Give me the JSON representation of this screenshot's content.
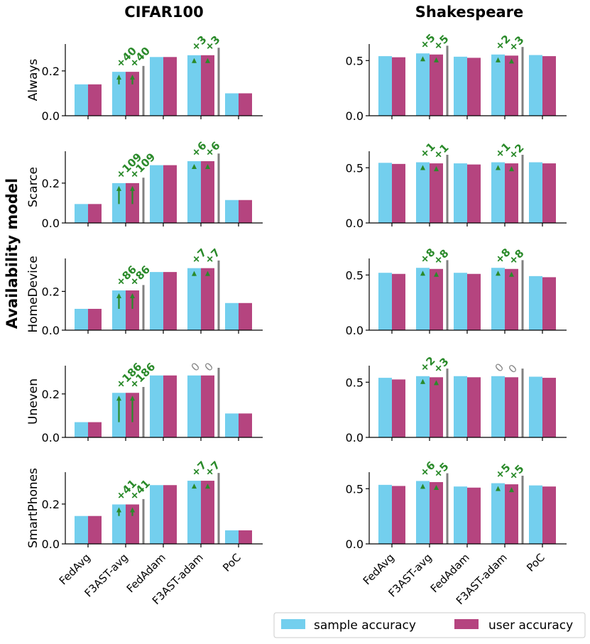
{
  "page": {
    "super_ylabel": "Availability model",
    "columns": [
      "CIFAR100",
      "Shakespeare"
    ],
    "rows": [
      "Always",
      "Scarce",
      "HomeDevice",
      "Uneven",
      "SmartPhones"
    ],
    "categories": [
      "FedAvg",
      "F3AST-avg",
      "FedAdam",
      "F3AST-adam",
      "PoC"
    ],
    "legend": [
      "sample accuracy",
      "user accuracy"
    ],
    "colors": {
      "sample": "#73cfee",
      "user": "#b5447f",
      "improve": "#2a8a2a",
      "zero": "#888888",
      "separator": "#808080"
    }
  },
  "chart_data": [
    {
      "type": "bar",
      "dataset": "CIFAR100",
      "row": "Always",
      "ylabel": "Always",
      "ylim": [
        0,
        0.32
      ],
      "yticks": [
        0.0,
        0.2
      ],
      "series": [
        {
          "name": "sample accuracy",
          "values": [
            0.14,
            0.196,
            0.262,
            0.27,
            0.1
          ]
        },
        {
          "name": "user accuracy",
          "values": [
            0.14,
            0.196,
            0.262,
            0.27,
            0.1
          ]
        }
      ],
      "improvements": [
        {
          "category": "F3AST-avg",
          "labels": [
            "+40",
            "+40"
          ]
        },
        {
          "category": "F3AST-adam",
          "labels": [
            "+3",
            "+3"
          ]
        }
      ]
    },
    {
      "type": "bar",
      "dataset": "Shakespeare",
      "row": "Always",
      "ylabel": "",
      "ylim": [
        0,
        0.65
      ],
      "yticks": [
        0.0,
        0.5
      ],
      "series": [
        {
          "name": "sample accuracy",
          "values": [
            0.54,
            0.565,
            0.535,
            0.555,
            0.55
          ]
        },
        {
          "name": "user accuracy",
          "values": [
            0.53,
            0.555,
            0.525,
            0.545,
            0.54
          ]
        }
      ],
      "improvements": [
        {
          "category": "F3AST-avg",
          "labels": [
            "+5",
            "+5"
          ]
        },
        {
          "category": "F3AST-adam",
          "labels": [
            "+2",
            "+3"
          ]
        }
      ]
    },
    {
      "type": "bar",
      "dataset": "CIFAR100",
      "row": "Scarce",
      "ylabel": "Scarce",
      "ylim": [
        0,
        0.36
      ],
      "yticks": [
        0.0,
        0.2
      ],
      "series": [
        {
          "name": "sample accuracy",
          "values": [
            0.095,
            0.2,
            0.29,
            0.31,
            0.115
          ]
        },
        {
          "name": "user accuracy",
          "values": [
            0.095,
            0.2,
            0.29,
            0.31,
            0.115
          ]
        }
      ],
      "improvements": [
        {
          "category": "F3AST-avg",
          "labels": [
            "+109",
            "+109"
          ]
        },
        {
          "category": "F3AST-adam",
          "labels": [
            "+6",
            "+6"
          ]
        }
      ]
    },
    {
      "type": "bar",
      "dataset": "Shakespeare",
      "row": "Scarce",
      "ylabel": "",
      "ylim": [
        0,
        0.65
      ],
      "yticks": [
        0.0,
        0.5
      ],
      "series": [
        {
          "name": "sample accuracy",
          "values": [
            0.545,
            0.55,
            0.54,
            0.55,
            0.55
          ]
        },
        {
          "name": "user accuracy",
          "values": [
            0.535,
            0.54,
            0.53,
            0.54,
            0.54
          ]
        }
      ],
      "improvements": [
        {
          "category": "F3AST-avg",
          "labels": [
            "+1",
            "+1"
          ]
        },
        {
          "category": "F3AST-adam",
          "labels": [
            "+1",
            "+2"
          ]
        }
      ]
    },
    {
      "type": "bar",
      "dataset": "CIFAR100",
      "row": "HomeDevice",
      "ylabel": "HomeDevice",
      "ylim": [
        0,
        0.37
      ],
      "yticks": [
        0.0,
        0.2
      ],
      "series": [
        {
          "name": "sample accuracy",
          "values": [
            0.11,
            0.205,
            0.3,
            0.32,
            0.14
          ]
        },
        {
          "name": "user accuracy",
          "values": [
            0.11,
            0.205,
            0.3,
            0.32,
            0.14
          ]
        }
      ],
      "improvements": [
        {
          "category": "F3AST-avg",
          "labels": [
            "+86",
            "+86"
          ]
        },
        {
          "category": "F3AST-adam",
          "labels": [
            "+7",
            "+7"
          ]
        }
      ]
    },
    {
      "type": "bar",
      "dataset": "Shakespeare",
      "row": "HomeDevice",
      "ylabel": "",
      "ylim": [
        0,
        0.65
      ],
      "yticks": [
        0.0,
        0.5
      ],
      "series": [
        {
          "name": "sample accuracy",
          "values": [
            0.52,
            0.565,
            0.52,
            0.565,
            0.49
          ]
        },
        {
          "name": "user accuracy",
          "values": [
            0.51,
            0.555,
            0.51,
            0.555,
            0.48
          ]
        }
      ],
      "improvements": [
        {
          "category": "F3AST-avg",
          "labels": [
            "+8",
            "+8"
          ]
        },
        {
          "category": "F3AST-adam",
          "labels": [
            "+8",
            "+8"
          ]
        }
      ]
    },
    {
      "type": "bar",
      "dataset": "CIFAR100",
      "row": "Uneven",
      "ylabel": "Uneven",
      "ylim": [
        0,
        0.33
      ],
      "yticks": [
        0.0,
        0.2
      ],
      "series": [
        {
          "name": "sample accuracy",
          "values": [
            0.07,
            0.205,
            0.285,
            0.285,
            0.11
          ]
        },
        {
          "name": "user accuracy",
          "values": [
            0.07,
            0.205,
            0.285,
            0.285,
            0.11
          ]
        }
      ],
      "improvements": [
        {
          "category": "F3AST-avg",
          "labels": [
            "+186",
            "+186"
          ]
        },
        {
          "category": "F3AST-adam",
          "labels": [
            "0",
            "0"
          ]
        }
      ]
    },
    {
      "type": "bar",
      "dataset": "Shakespeare",
      "row": "Uneven",
      "ylabel": "",
      "ylim": [
        0,
        0.65
      ],
      "yticks": [
        0.0,
        0.5
      ],
      "series": [
        {
          "name": "sample accuracy",
          "values": [
            0.54,
            0.555,
            0.555,
            0.555,
            0.55
          ]
        },
        {
          "name": "user accuracy",
          "values": [
            0.525,
            0.545,
            0.545,
            0.545,
            0.54
          ]
        }
      ],
      "improvements": [
        {
          "category": "F3AST-avg",
          "labels": [
            "+2",
            "+3"
          ]
        },
        {
          "category": "F3AST-adam",
          "labels": [
            "0",
            "0"
          ]
        }
      ]
    },
    {
      "type": "bar",
      "dataset": "CIFAR100",
      "row": "SmartPhones",
      "ylabel": "SmartPhones",
      "ylim": [
        0,
        0.36
      ],
      "yticks": [
        0.0,
        0.2
      ],
      "series": [
        {
          "name": "sample accuracy",
          "values": [
            0.14,
            0.198,
            0.295,
            0.317,
            0.068
          ]
        },
        {
          "name": "user accuracy",
          "values": [
            0.14,
            0.198,
            0.295,
            0.317,
            0.068
          ]
        }
      ],
      "improvements": [
        {
          "category": "F3AST-avg",
          "labels": [
            "+41",
            "+41"
          ]
        },
        {
          "category": "F3AST-adam",
          "labels": [
            "+7",
            "+7"
          ]
        }
      ]
    },
    {
      "type": "bar",
      "dataset": "Shakespeare",
      "row": "SmartPhones",
      "ylabel": "",
      "ylim": [
        0,
        0.65
      ],
      "yticks": [
        0.0,
        0.5
      ],
      "series": [
        {
          "name": "sample accuracy",
          "values": [
            0.535,
            0.57,
            0.52,
            0.55,
            0.53
          ]
        },
        {
          "name": "user accuracy",
          "values": [
            0.525,
            0.56,
            0.51,
            0.54,
            0.52
          ]
        }
      ],
      "improvements": [
        {
          "category": "F3AST-avg",
          "labels": [
            "+6",
            "+5"
          ]
        },
        {
          "category": "F3AST-adam",
          "labels": [
            "+5",
            "+5"
          ]
        }
      ]
    }
  ]
}
